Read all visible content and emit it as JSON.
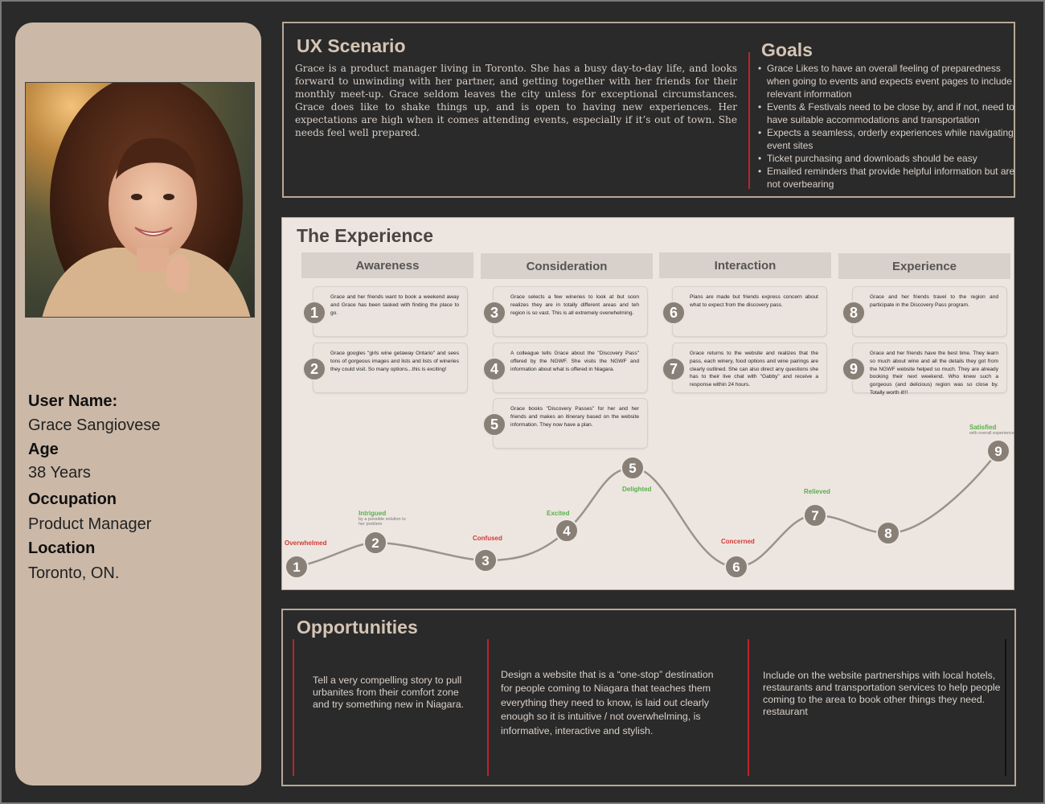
{
  "persona": {
    "photo_icon": "portrait-photo",
    "fields": [
      {
        "label": "User Name:",
        "value": "Grace Sangiovese"
      },
      {
        "label": "Age",
        "value": "38 Years"
      },
      {
        "label": "Occupation",
        "value": "Product Manager"
      },
      {
        "label": "Location",
        "value": "Toronto, ON."
      }
    ]
  },
  "scenario": {
    "title": "UX Scenario",
    "text": "Grace is a product manager living in Toronto. She has a busy day-to-day life, and looks forward to unwinding with her partner, and getting together with her friends for their monthly meet-up. Grace seldom leaves the city unless for exceptional circumstances.  Grace does like to shake things up, and is open to having new experiences. Her expectations are high when it comes attending events, especially if it’s out of town. She needs feel well prepared."
  },
  "goals": {
    "title": "Goals",
    "items": [
      "Grace Likes to have an overall feeling of preparedness when going to events and expects event pages to include relevant information",
      "Events & Festivals need to be close by, and if not, need to have suitable accommodations and transportation",
      "Expects a seamless, orderly experiences while navigating event sites",
      "Ticket purchasing and downloads should be easy",
      "Emailed reminders that provide helpful information but are not overbearing"
    ]
  },
  "experience": {
    "title": "The Experience",
    "phases": [
      "Awareness",
      "Consideration",
      "Interaction",
      "Experience"
    ],
    "cards": [
      {
        "num": "1",
        "text": "Grace and her friends want to book a weekend away and Grace has been tasked with finding the place to go."
      },
      {
        "num": "2",
        "text": "Grace googles \"girls wine getaway Ontario\" and sees tons of gorgeous images and lists and lists of wineries they could visit. So many options...this is exciting!"
      },
      {
        "num": "3",
        "text": "Grace selects a few wineries to look at but soon realizes they are in totally different areas and teh region is so vast. This is all extremely overwhelming."
      },
      {
        "num": "4",
        "text": "A colleague tells Grace about the \"Discovery Pass\" offered by the NGWF. She visits the NGWF and information about what is offered in Niagara."
      },
      {
        "num": "5",
        "text": "Grace books \"Discovery Passes\" for her and her friends and makes an itinerary based on the website information. They now have a plan."
      },
      {
        "num": "6",
        "text": "Plans are made but friends express concern about what to expect from the discovery pass."
      },
      {
        "num": "7",
        "text": "Grace returns to the website and realizes that the pass, each winery, food options and wine pairings are clearly outlined. She can also direct any questions she has to their live chat with \"Gabby\" and receive a response within 24 hours."
      },
      {
        "num": "8",
        "text": "Grace and her friends travel to the region and participate in the Discovery Pass program."
      },
      {
        "num": "9",
        "text": "Grace and her friends have the best time. They learn so much about wine and all the details they got from the NGWF website helped so much. They are already booking their next weekend. Who knew such a gorgeous (and delicious) region was so close by. Totally worth it!!!"
      }
    ],
    "journey": [
      {
        "num": "1",
        "label": "Overwhelmed",
        "sub": "",
        "tone": "red"
      },
      {
        "num": "2",
        "label": "Intrigued",
        "sub": "by a possible solution to her problem",
        "tone": "green"
      },
      {
        "num": "3",
        "label": "Confused",
        "sub": "",
        "tone": "red"
      },
      {
        "num": "4",
        "label": "Excited",
        "sub": "",
        "tone": "green"
      },
      {
        "num": "5",
        "label": "Delighted",
        "sub": "",
        "tone": "green"
      },
      {
        "num": "6",
        "label": "Concerned",
        "sub": "",
        "tone": "red"
      },
      {
        "num": "7",
        "label": "Relieved",
        "sub": "",
        "tone": "green"
      },
      {
        "num": "8",
        "label": "",
        "sub": "",
        "tone": "green"
      },
      {
        "num": "9",
        "label": "Satisfied",
        "sub": "with overall experience",
        "tone": "green"
      }
    ],
    "colors": {
      "positive": "#57b04a",
      "negative": "#d23a3a",
      "curve": "#9b938b",
      "node": "#888077"
    }
  },
  "opportunities": {
    "title": "Opportunities",
    "items": [
      "Tell a very compelling story to pull urbanites from their comfort zone and try something new in Niagara.",
      "Design a website that is a “one-stop” destination for people coming to Niagara that teaches them everything they need to know, is laid out clearly enough so it is intuitive / not overwhelming, is informative, interactive and stylish.",
      "Include on the website partnerships with local hotels, restaurants and transportation services to help people coming to the area to book other things they need.\nrestaurant"
    ]
  },
  "theme": {
    "accent_red": "#c0232a",
    "persona_bg": "#cbb8a7",
    "panel_border": "#b8a898",
    "page_bg": "#2a2a2a"
  }
}
